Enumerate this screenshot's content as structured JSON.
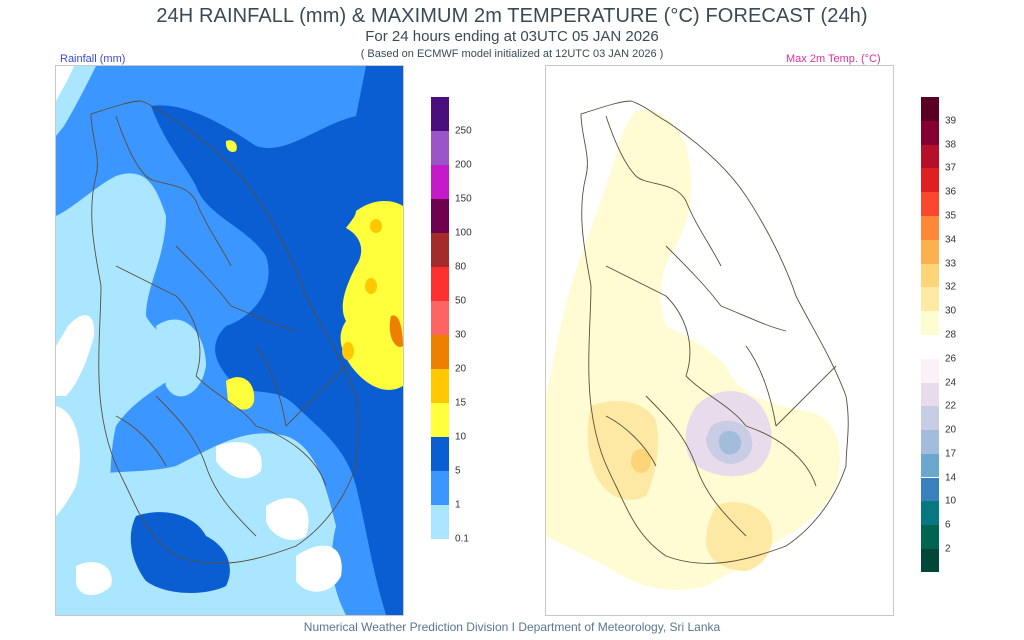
{
  "header": {
    "title": "24H RAINFALL (mm) & MAXIMUM 2m TEMPERATURE (°C) FORECAST (24h)",
    "subtitle": "For 24 hours ending at 03UTC 05 JAN 2026",
    "note": "( Based on ECMWF model initialized at 12UTC 03 JAN 2026 )"
  },
  "rainfall_panel": {
    "label": "Rainfall (mm)",
    "label_color": "#3a4ad8",
    "legend": {
      "levels": [
        "250",
        "200",
        "150",
        "100",
        "80",
        "50",
        "30",
        "20",
        "15",
        "10",
        "5",
        "1",
        "0.1"
      ],
      "colors": [
        "#4b0f7d",
        "#9a56c8",
        "#c51ac8",
        "#6e0050",
        "#a52a2a",
        "#ff3030",
        "#ff6464",
        "#ee8000",
        "#ffc800",
        "#ffff3c",
        "#0a5ed2",
        "#3c96ff",
        "#aae6ff"
      ]
    }
  },
  "temperature_panel": {
    "label": "Max 2m Temp. (°C)",
    "label_color": "#e0309a",
    "legend_warm": {
      "levels": [
        "39",
        "38",
        "37",
        "36",
        "35",
        "34",
        "33",
        "32",
        "30",
        "28"
      ],
      "colors": [
        "#5a0024",
        "#850030",
        "#b4102a",
        "#e02020",
        "#f84830",
        "#fc8838",
        "#fcb050",
        "#fed478",
        "#fee9a4",
        "#fffbd2"
      ]
    },
    "legend_cool": {
      "levels": [
        "26",
        "24",
        "22",
        "20",
        "17",
        "14",
        "10",
        "6",
        "2"
      ],
      "colors": [
        "#fbf2f8",
        "#e8dcec",
        "#c8cce4",
        "#a4bcdc",
        "#6aa8d0",
        "#3880be",
        "#087880",
        "#016450",
        "#014636"
      ]
    }
  },
  "footer": {
    "text": "Numerical Weather Prediction Division I Department of Meteorology, Sri Lanka"
  }
}
